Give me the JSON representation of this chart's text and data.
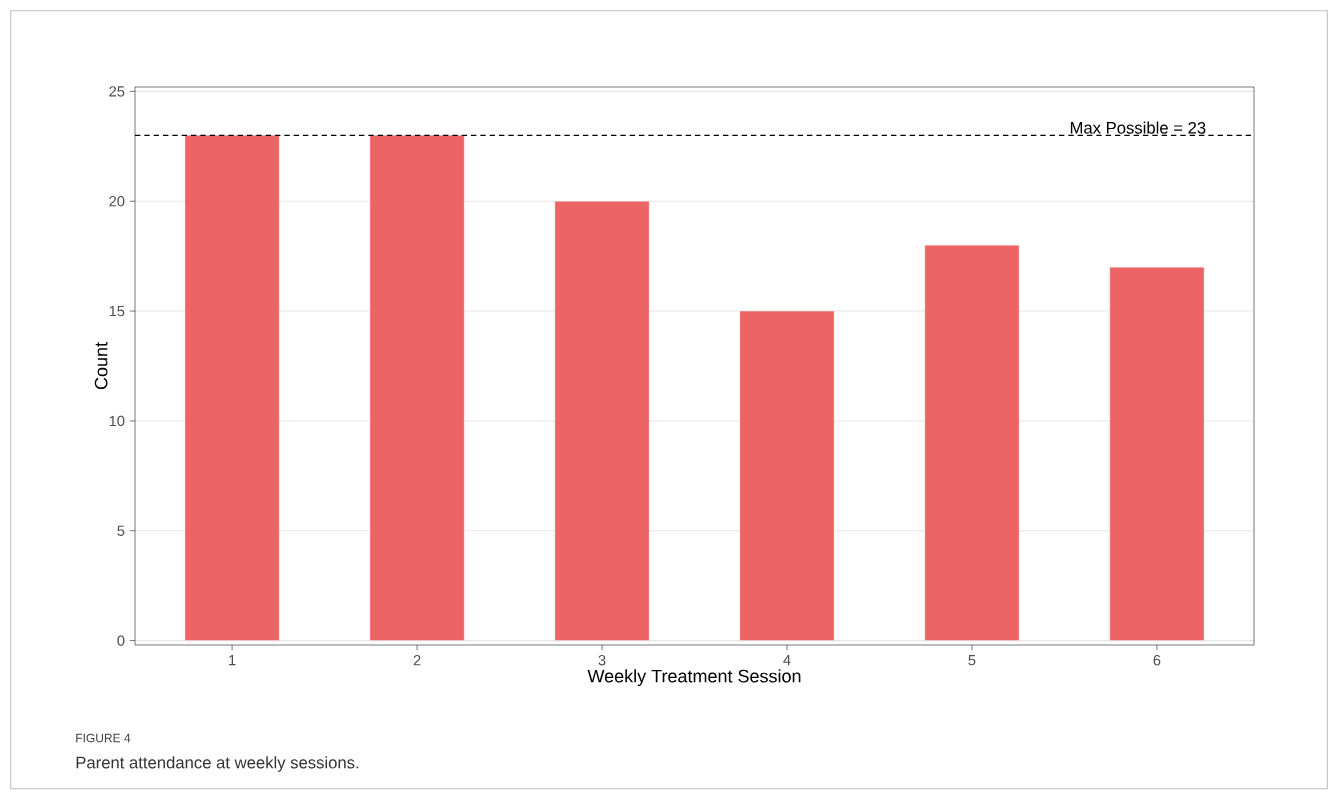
{
  "chart_data": {
    "type": "bar",
    "categories": [
      "1",
      "2",
      "3",
      "4",
      "5",
      "6"
    ],
    "values": [
      23,
      23,
      20,
      15,
      18,
      17
    ],
    "color": "#ed6465",
    "xlabel": "Weekly Treatment Session",
    "ylabel": "Count",
    "ylim": [
      -0.2,
      25.2
    ],
    "yticks": [
      0,
      5,
      10,
      15,
      20,
      25
    ],
    "grid": "y",
    "ref_lines": [
      {
        "axis": "y",
        "value": 23,
        "label": "Max Possible = 23",
        "line_style": "dashed",
        "color": "#000000"
      }
    ],
    "annotations": [
      "FIGURE 4",
      "Parent attendance at weekly sessions."
    ]
  }
}
